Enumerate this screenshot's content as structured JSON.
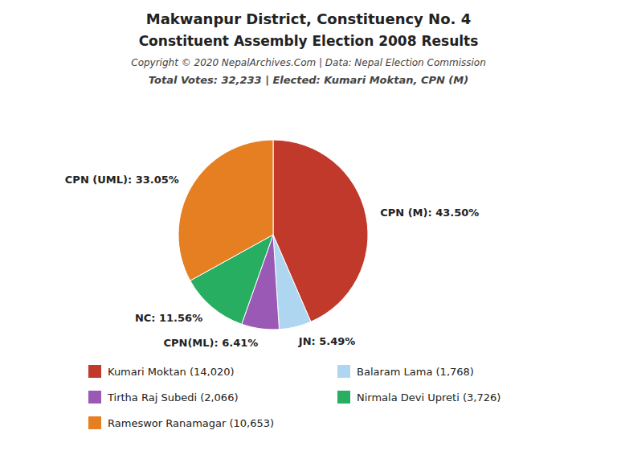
{
  "chart_data": {
    "type": "pie",
    "title": "Makwanpur District, Constituency No. 4",
    "subtitle": "Constituent Assembly Election 2008 Results",
    "annotations": [
      "Copyright © 2020 NepalArchives.Com | Data: Nepal Election Commission",
      "Total Votes: 32,233 | Elected: Kumari Moktan, CPN (M)"
    ],
    "categories": [
      "Kumari Moktan (14,020)",
      "Balaram Lama (1,768)",
      "Tirtha Raj Subedi (2,066)",
      "Nirmala Devi Upreti (3,726)",
      "Rameswor Ranamagar (10,653)"
    ],
    "values": [
      43.5,
      5.49,
      6.41,
      11.56,
      33.05
    ],
    "value_labels": [
      "CPN (M): 43.50%",
      "JN: 5.49%",
      "CPN(ML): 6.41%",
      "NC: 11.56%",
      "CPN (UML): 33.05%"
    ],
    "colors": [
      "#c0392b",
      "#aed6f1",
      "#9b59b6",
      "#27ae60",
      "#e67e22"
    ],
    "data_labels": true,
    "legend": "bottom"
  }
}
